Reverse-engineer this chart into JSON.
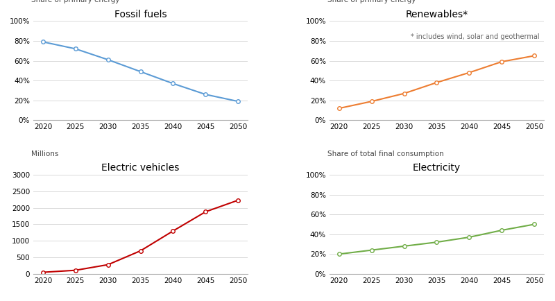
{
  "years": [
    2020,
    2025,
    2030,
    2035,
    2040,
    2045,
    2050
  ],
  "fossil_fuels": {
    "title": "Fossil fuels",
    "ylabel": "Share of primary energy",
    "values": [
      0.79,
      0.72,
      0.61,
      0.49,
      0.37,
      0.26,
      0.19
    ],
    "color": "#5b9bd5",
    "ylim": [
      0,
      1.0
    ],
    "yticks": [
      0,
      0.2,
      0.4,
      0.6,
      0.8,
      1.0
    ],
    "ytick_labels": [
      "0%",
      "20%",
      "40%",
      "60%",
      "80%",
      "100%"
    ]
  },
  "renewables": {
    "title": "Renewables*",
    "ylabel": "Share of primary energy",
    "annotation": "* includes wind, solar and geothermal",
    "values": [
      0.12,
      0.19,
      0.27,
      0.38,
      0.48,
      0.59,
      0.65
    ],
    "color": "#ed7d31",
    "ylim": [
      0,
      1.0
    ],
    "yticks": [
      0,
      0.2,
      0.4,
      0.6,
      0.8,
      1.0
    ],
    "ytick_labels": [
      "0%",
      "20%",
      "40%",
      "60%",
      "80%",
      "100%"
    ]
  },
  "electric_vehicles": {
    "title": "Electric vehicles",
    "ylabel": "Millions",
    "values": [
      50,
      110,
      280,
      700,
      1300,
      1880,
      2230
    ],
    "color": "#c00000",
    "ylim": [
      0,
      3000
    ],
    "yticks": [
      0,
      500,
      1000,
      1500,
      2000,
      2500,
      3000
    ],
    "ytick_labels": [
      "0",
      "500",
      "1000",
      "1500",
      "2000",
      "2500",
      "3000"
    ]
  },
  "electricity": {
    "title": "Electricity",
    "ylabel": "Share of total final consumption",
    "values": [
      0.2,
      0.24,
      0.28,
      0.32,
      0.37,
      0.44,
      0.5
    ],
    "color": "#70ad47",
    "ylim": [
      0,
      1.0
    ],
    "yticks": [
      0,
      0.2,
      0.4,
      0.6,
      0.8,
      1.0
    ],
    "ytick_labels": [
      "0%",
      "20%",
      "40%",
      "60%",
      "80%",
      "100%"
    ]
  },
  "background_color": "#ffffff",
  "grid_color": "#d9d9d9",
  "marker": "o",
  "marker_size": 4,
  "marker_facecolor": "white",
  "linewidth": 1.5,
  "xticks": [
    2020,
    2025,
    2030,
    2035,
    2040,
    2045,
    2050
  ]
}
